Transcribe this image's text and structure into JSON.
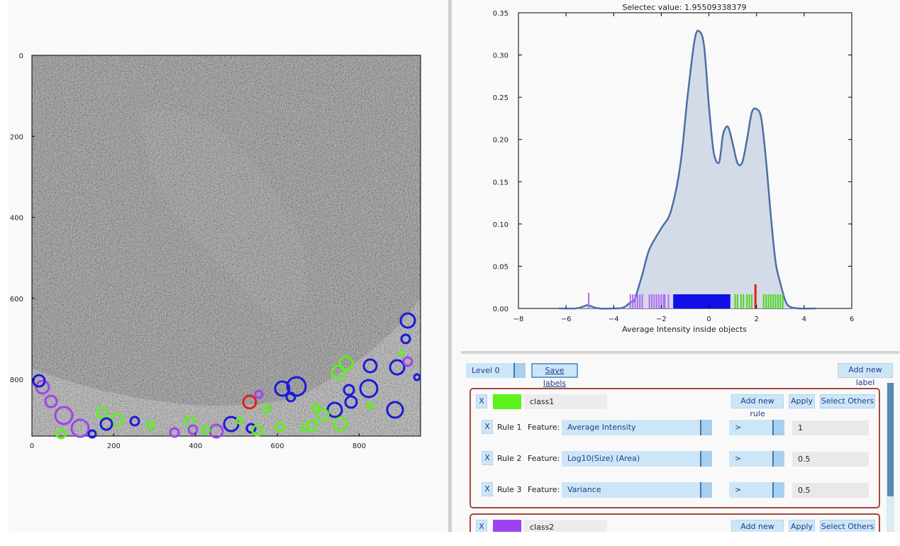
{
  "image_view": {
    "x_ticks": [
      "0",
      "200",
      "400",
      "600",
      "800"
    ],
    "y_ticks": [
      "0",
      "200",
      "400",
      "600",
      "800"
    ]
  },
  "histogram": {
    "title": "Selectec value: 1.95509338379",
    "xlabel": "Average Intensity inside objects",
    "x_ticks": [
      "−8",
      "−6",
      "−4",
      "−2",
      "0",
      "2",
      "4",
      "6"
    ],
    "y_ticks": [
      "0.00",
      "0.05",
      "0.10",
      "0.15",
      "0.20",
      "0.25",
      "0.30",
      "0.35"
    ],
    "selected_value": 1.95509338379
  },
  "chart_data": {
    "type": "area",
    "title": "Selectec value: 1.95509338379",
    "xlabel": "Average Intensity inside objects",
    "ylabel": "",
    "xlim": [
      -8,
      6
    ],
    "ylim": [
      0,
      0.35
    ],
    "x": [
      -6.3,
      -5.6,
      -5.3,
      -5.1,
      -4.9,
      -4.6,
      -4.0,
      -3.6,
      -3.3,
      -3.2,
      -3.1,
      -2.8,
      -2.5,
      -2.0,
      -1.6,
      -1.2,
      -0.9,
      -0.6,
      -0.4,
      -0.2,
      0.0,
      0.2,
      0.4,
      0.5,
      0.6,
      0.8,
      1.0,
      1.2,
      1.4,
      1.6,
      1.8,
      2.0,
      2.2,
      2.4,
      2.6,
      2.8,
      3.0,
      3.2,
      3.4,
      3.8,
      4.5
    ],
    "y": [
      0.0,
      0.0,
      0.002,
      0.004,
      0.002,
      0.0,
      0.0,
      0.001,
      0.007,
      0.008,
      0.012,
      0.04,
      0.07,
      0.095,
      0.115,
      0.17,
      0.25,
      0.318,
      0.328,
      0.31,
      0.24,
      0.185,
      0.172,
      0.185,
      0.207,
      0.215,
      0.195,
      0.172,
      0.173,
      0.2,
      0.232,
      0.236,
      0.225,
      0.175,
      0.11,
      0.055,
      0.03,
      0.01,
      0.002,
      0.0,
      0.0
    ],
    "series": [
      {
        "values": [
          0.0,
          0.0,
          0.002,
          0.004,
          0.002,
          0.0,
          0.0,
          0.001,
          0.007,
          0.008,
          0.012,
          0.04,
          0.07,
          0.095,
          0.115,
          0.17,
          0.25,
          0.318,
          0.328,
          0.31,
          0.24,
          0.185,
          0.172,
          0.185,
          0.207,
          0.215,
          0.195,
          0.172,
          0.173,
          0.2,
          0.232,
          0.236,
          0.225,
          0.175,
          0.11,
          0.055,
          0.03,
          0.01,
          0.002,
          0.0,
          0.0
        ]
      }
    ],
    "selected_x": 1.955,
    "grid": false
  },
  "rug": {
    "purple": [
      -5.05,
      -3.3,
      -3.2,
      -3.1,
      -3.0,
      -2.9,
      -2.8,
      -2.5,
      -2.4,
      -2.3,
      -2.2,
      -2.1,
      -2.0,
      -1.9,
      -1.85,
      -1.7
    ],
    "blue_range": [
      -1.5,
      0.9
    ],
    "green": [
      1.1,
      1.2,
      1.35,
      1.45,
      1.6,
      1.7,
      1.8,
      2.3,
      2.4,
      2.5,
      2.6,
      2.7,
      2.8,
      2.9,
      3.0,
      3.1
    ]
  },
  "panel": {
    "level_label": "Level 0",
    "save_label": "Save labels",
    "add_label": "Add new label",
    "feature_label": "Feature:",
    "classes": [
      {
        "x_label": "X",
        "name": "class1",
        "color": "#5cf21a",
        "add_rule": "Add new rule",
        "apply": "Apply",
        "select_others": "Select Others",
        "rules": [
          {
            "x_label": "X",
            "name": "Rule 1",
            "feature": "Average Intensity",
            "op": ">",
            "value": "1"
          },
          {
            "x_label": "X",
            "name": "Rule 2",
            "feature": "Log10(Size) (Area)",
            "op": ">",
            "value": "0.5"
          },
          {
            "x_label": "X",
            "name": "Rule 3",
            "feature": "Variance",
            "op": ">",
            "value": "0.5"
          }
        ]
      },
      {
        "x_label": "X",
        "name": "class2",
        "color": "#9e43f2",
        "add_rule": "Add new rule",
        "apply": "Apply",
        "select_others": "Select Others"
      }
    ]
  }
}
